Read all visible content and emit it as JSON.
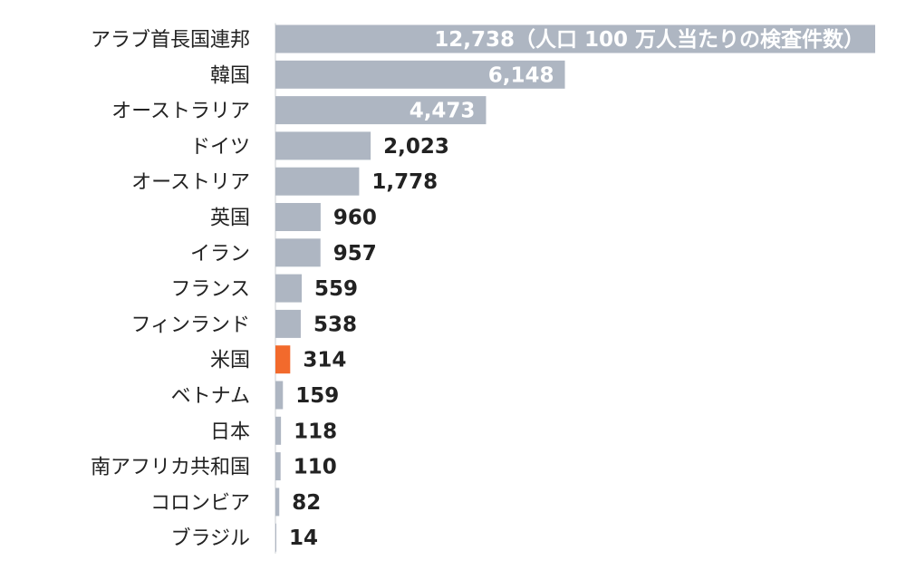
{
  "chart_data": {
    "type": "bar",
    "orientation": "horizontal",
    "categories": [
      "アラブ首長国連邦",
      "韓国",
      "オーストラリア",
      "ドイツ",
      "オーストリア",
      "英国",
      "イラン",
      "フランス",
      "フィンランド",
      "米国",
      "ベトナム",
      "日本",
      "南アフリカ共和国",
      "コロンビア",
      "ブラジル"
    ],
    "values": [
      12738,
      6148,
      4473,
      2023,
      1778,
      960,
      957,
      559,
      538,
      314,
      159,
      118,
      110,
      82,
      14
    ],
    "value_labels": [
      "12,738（人口 100 万人当たりの検査件数）",
      "6,148",
      "4,473",
      "2,023",
      "1,778",
      "960",
      "957",
      "559",
      "538",
      "314",
      "159",
      "118",
      "110",
      "82",
      "14"
    ],
    "highlight_category": "米国",
    "xlim": [
      0,
      12738
    ],
    "grid": false,
    "legend": "none",
    "colors": {
      "bar": "#aeb6c2",
      "highlight": "#f26a2c",
      "label_inside": "#ffffff",
      "label_outside": "#222222",
      "category_text": "#222222",
      "axis_line": "#c8ccd2"
    }
  }
}
